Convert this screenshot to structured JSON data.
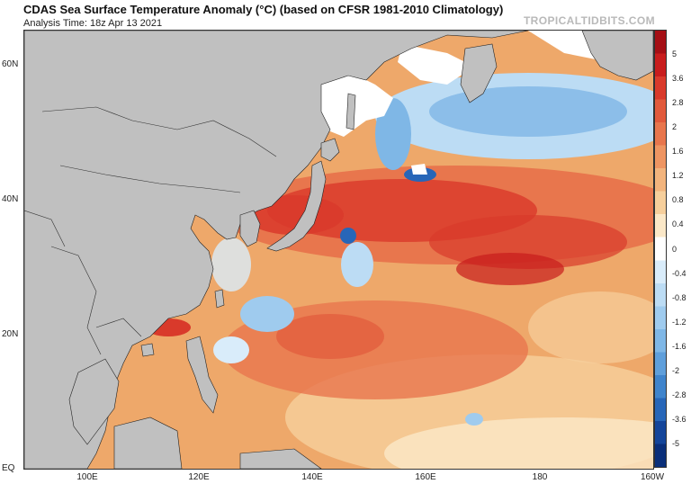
{
  "header": {
    "title": "CDAS Sea Surface Temperature Anomaly (°C) (based on CFSR 1981-2010 Climatology)",
    "subtitle": "Analysis Time: 18z Apr 13 2021",
    "credit": "TROPICALTIDBITS.COM"
  },
  "axes": {
    "lat_labels": [
      "60N",
      "40N",
      "20N",
      "EQ"
    ],
    "lon_labels": [
      "100E",
      "120E",
      "140E",
      "160E",
      "180",
      "160W"
    ]
  },
  "colorbar": {
    "labels": [
      "5",
      "3.6",
      "2.8",
      "2",
      "1.6",
      "1.2",
      "0.8",
      "0.4",
      "0",
      "-0.4",
      "-0.8",
      "-1.2",
      "-1.6",
      "-2",
      "-2.8",
      "-3.6",
      "-5"
    ],
    "colors": [
      "#a50f15",
      "#c81d1d",
      "#d93a2b",
      "#e15a3c",
      "#e8764d",
      "#ee9562",
      "#f2b47d",
      "#f6cf9c",
      "#fbe8c8",
      "#ffffff",
      "#d9ecfa",
      "#bcdcf4",
      "#9fcbee",
      "#7fb7e6",
      "#5f9fdb",
      "#3f84cc",
      "#2766b8",
      "#14459a",
      "#0a2f7a"
    ]
  },
  "map_colors": {
    "land": "#c0c0c0",
    "ice": "#ffffff",
    "border": "#222222",
    "ocean_base": "#e9a466"
  }
}
